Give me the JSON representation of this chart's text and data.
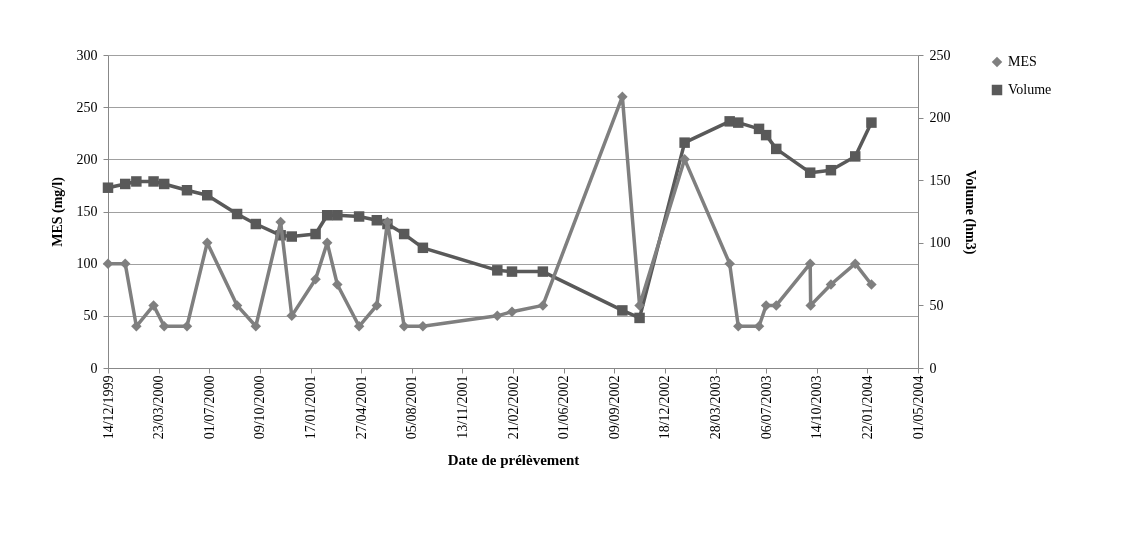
{
  "chart_data": {
    "type": "line",
    "xlabel": "Date de prélèvement",
    "ylabel": "MES (mg/l)",
    "y2label": "Volume (hm3)",
    "xlim": [
      "1999-12-14",
      "2004-05-01"
    ],
    "xticks": [
      {
        "value": "1999-12-14",
        "label": "14/12/1999"
      },
      {
        "value": "2000-03-23",
        "label": "23/03/2000"
      },
      {
        "value": "2000-07-01",
        "label": "01/07/2000"
      },
      {
        "value": "2000-10-09",
        "label": "09/10/2000"
      },
      {
        "value": "2001-01-17",
        "label": "17/01/2001"
      },
      {
        "value": "2001-04-27",
        "label": "27/04/2001"
      },
      {
        "value": "2001-08-05",
        "label": "05/08/2001"
      },
      {
        "value": "2001-11-13",
        "label": "13/11/2001"
      },
      {
        "value": "2002-02-21",
        "label": "21/02/2002"
      },
      {
        "value": "2002-06-01",
        "label": "01/06/2002"
      },
      {
        "value": "2002-09-09",
        "label": "09/09/2002"
      },
      {
        "value": "2002-12-18",
        "label": "18/12/2002"
      },
      {
        "value": "2003-03-28",
        "label": "28/03/2003"
      },
      {
        "value": "2003-07-06",
        "label": "06/07/2003"
      },
      {
        "value": "2003-10-14",
        "label": "14/10/2003"
      },
      {
        "value": "2004-01-22",
        "label": "22/01/2004"
      },
      {
        "value": "2004-05-01",
        "label": "01/05/2004"
      }
    ],
    "ylim": [
      0,
      300
    ],
    "yticks": [
      0,
      50,
      100,
      150,
      200,
      250,
      300
    ],
    "y2lim": [
      0,
      250
    ],
    "y2ticks": [
      0,
      50,
      100,
      150,
      200,
      250
    ],
    "grid": "y",
    "legend": "right",
    "line_style": "solid",
    "series": [
      {
        "name": "MES",
        "color": "#7f7f7f",
        "marker": "diamond",
        "x": [
          "1999-12-14",
          "2000-01-17",
          "2000-02-08",
          "2000-03-13",
          "2000-04-03",
          "2000-05-18",
          "2000-06-27",
          "2000-08-25",
          "2000-10-01",
          "2000-11-19",
          "2000-12-11",
          "2001-01-27",
          "2001-02-19",
          "2001-03-11",
          "2001-04-23",
          "2001-05-28",
          "2001-06-18",
          "2001-07-21",
          "2001-08-27",
          "2002-01-21",
          "2002-02-19",
          "2002-04-21",
          "2002-09-25",
          "2002-10-29",
          "2003-01-26",
          "2003-04-25",
          "2003-05-12",
          "2003-06-22",
          "2003-07-06",
          "2003-07-26",
          "2003-10-01",
          "2003-10-02",
          "2003-11-11",
          "2003-12-29",
          "2004-01-30"
        ],
        "values": [
          100,
          100,
          40,
          60,
          40,
          40,
          120,
          60,
          40,
          140,
          50,
          85,
          120,
          80,
          40,
          60,
          140,
          40,
          40,
          50,
          54,
          60,
          260,
          60,
          200,
          100,
          40,
          40,
          60,
          60,
          100,
          60,
          80,
          100,
          80
        ]
      },
      {
        "name": "Volume",
        "color": "#595959",
        "marker": "square",
        "axis": "y2",
        "x": [
          "1999-12-14",
          "2000-01-17",
          "2000-02-08",
          "2000-03-13",
          "2000-04-03",
          "2000-05-18",
          "2000-06-27",
          "2000-08-25",
          "2000-10-01",
          "2000-11-19",
          "2000-12-11",
          "2001-01-27",
          "2001-02-19",
          "2001-03-11",
          "2001-04-23",
          "2001-05-28",
          "2001-06-18",
          "2001-07-21",
          "2001-08-27",
          "2002-01-21",
          "2002-02-19",
          "2002-04-21",
          "2002-09-25",
          "2002-10-29",
          "2003-01-26",
          "2003-04-25",
          "2003-05-12",
          "2003-06-22",
          "2003-07-06",
          "2003-07-26",
          "2003-10-01",
          "2003-11-11",
          "2003-12-29",
          "2004-01-30"
        ],
        "values": [
          144,
          147,
          149,
          149,
          147,
          142,
          138,
          123,
          115,
          106,
          105,
          107,
          122,
          122,
          121,
          118,
          115,
          107,
          96,
          78,
          77,
          77,
          46,
          40,
          180,
          197,
          196,
          191,
          186,
          175,
          156,
          158,
          169,
          196
        ]
      }
    ]
  }
}
